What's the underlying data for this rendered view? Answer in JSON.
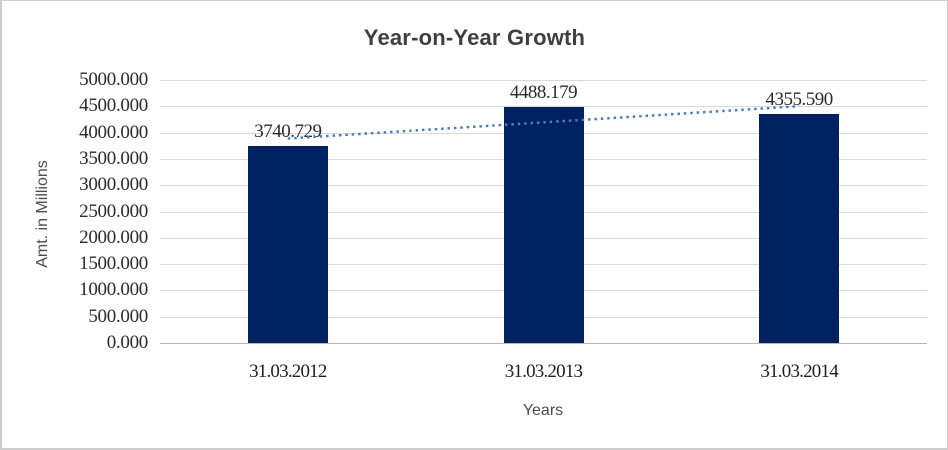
{
  "chart_data": {
    "type": "bar",
    "title": "Year-on-Year Growth",
    "xlabel": "Years",
    "ylabel": "Amt. in Millions",
    "categories": [
      "31.03.2012",
      "31.03.2013",
      "31.03.2014"
    ],
    "values": [
      3740.729,
      4488.179,
      4355.59
    ],
    "value_labels": [
      "3740.729",
      "4488.179",
      "4355.590"
    ],
    "ylim": [
      0,
      5000
    ],
    "y_tick_labels": [
      "0.000",
      "500.000",
      "1000.000",
      "1500.000",
      "2000.000",
      "2500.000",
      "3000.000",
      "3500.000",
      "4000.000",
      "4500.000",
      "5000.000"
    ],
    "grid": true,
    "legend": "none",
    "trendline": {
      "type": "linear",
      "style": "dotted"
    },
    "colors": {
      "bar": "#00215f",
      "trendline": "#4a7ebb",
      "gridline": "#d9d9d9",
      "axis_line": "#b7b7b7",
      "title_text": "#3f3f3f",
      "tick_text": "#2b2b2b",
      "axis_title_text": "#4d4d4d"
    }
  }
}
